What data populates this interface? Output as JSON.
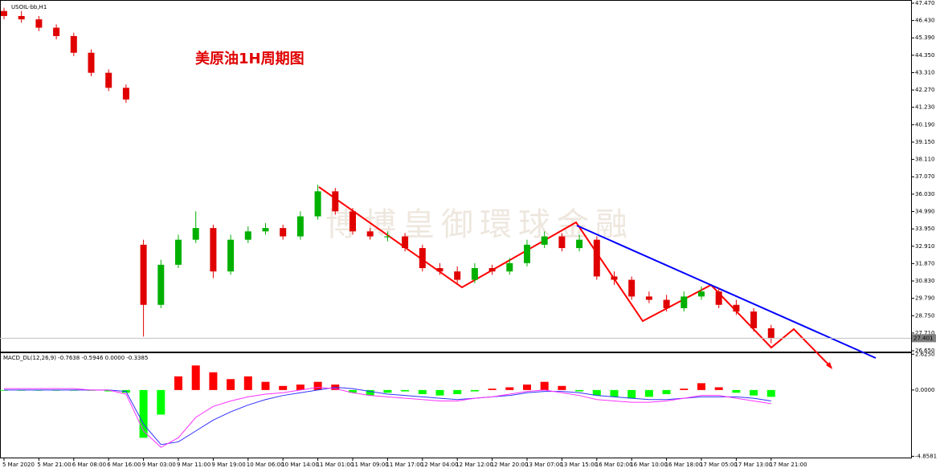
{
  "title": "USOIL-bb,H1",
  "annotation": "美原油1H周期图",
  "watermark": "博博皇御環球金融",
  "chart_data": [
    {
      "type": "candlestick",
      "categories": [
        "5 Mar 2020",
        null,
        "5 Mar 21:00",
        null,
        "6 Mar 08:00",
        null,
        "6 Mar 16:00",
        null,
        "9 Mar 03:00",
        null,
        "9 Mar 11:00",
        null,
        "9 Mar 19:00",
        null,
        "10 Mar 06:00",
        null,
        "10 Mar 14:00",
        null,
        "11 Mar 01:00",
        null,
        "11 Mar 09:00",
        null,
        "11 Mar 17:00",
        null,
        "12 Mar 04:00",
        null,
        "12 Mar 12:00",
        null,
        "12 Mar 20:00",
        null,
        "13 Mar 07:00",
        null,
        "13 Mar 15:00",
        null,
        "16 Mar 02:00",
        null,
        "16 Mar 10:00",
        null,
        "16 Mar 18:00",
        null,
        "17 Mar 05:00",
        null,
        "17 Mar 13:00",
        null,
        "17 Mar 21:00"
      ],
      "open": [
        47.0,
        46.7,
        46.5,
        46.0,
        45.5,
        44.5,
        43.3,
        42.4,
        33.0,
        29.4,
        31.8,
        33.3,
        34.0,
        31.4,
        33.3,
        33.8,
        34.0,
        33.5,
        34.7,
        36.2,
        35.0,
        33.8,
        33.5,
        33.5,
        32.8,
        31.6,
        31.4,
        30.9,
        31.6,
        31.4,
        31.9,
        33.0,
        33.5,
        32.8,
        33.3,
        31.1,
        30.9,
        29.9,
        29.7,
        29.2,
        29.9,
        30.2,
        29.4,
        29.0,
        28.0
      ],
      "high": [
        47.2,
        47.0,
        46.7,
        46.2,
        45.7,
        44.7,
        43.5,
        42.6,
        33.3,
        32.1,
        33.6,
        35.0,
        34.2,
        33.6,
        34.1,
        34.3,
        34.2,
        35.0,
        36.6,
        36.4,
        35.2,
        34.0,
        33.8,
        33.7,
        33.0,
        31.9,
        31.7,
        31.9,
        31.8,
        32.2,
        33.3,
        33.8,
        33.7,
        33.6,
        33.5,
        31.4,
        31.1,
        30.2,
        30.0,
        30.2,
        30.5,
        30.4,
        29.7,
        29.2,
        28.2
      ],
      "low": [
        46.5,
        46.3,
        45.8,
        45.3,
        44.3,
        43.1,
        42.2,
        41.5,
        27.5,
        29.2,
        31.6,
        33.1,
        31.0,
        31.2,
        33.1,
        33.6,
        33.3,
        33.3,
        34.5,
        34.8,
        33.6,
        33.3,
        33.2,
        32.6,
        31.4,
        31.2,
        30.7,
        30.7,
        31.2,
        31.2,
        31.7,
        32.8,
        32.6,
        32.6,
        30.9,
        30.6,
        29.7,
        29.5,
        29.0,
        29.0,
        29.7,
        29.2,
        28.8,
        27.8,
        27.1
      ],
      "close": [
        46.7,
        46.5,
        46.0,
        45.5,
        44.5,
        43.3,
        42.4,
        41.7,
        29.4,
        31.8,
        33.3,
        34.0,
        31.4,
        33.3,
        33.8,
        34.0,
        33.5,
        34.7,
        36.2,
        35.0,
        33.8,
        33.5,
        33.5,
        32.8,
        31.6,
        31.4,
        30.9,
        31.6,
        31.4,
        31.9,
        33.0,
        33.5,
        32.8,
        33.3,
        31.1,
        30.9,
        29.9,
        29.7,
        29.2,
        29.9,
        30.2,
        29.4,
        29.0,
        28.0,
        27.4
      ],
      "up_color": "#00b000",
      "down_color": "#e00000",
      "last_price": 27.401,
      "ylim": [
        26.6,
        47.66
      ],
      "yticks": [
        {
          "value": 47.47,
          "label": "47.470"
        },
        {
          "value": 46.43,
          "label": "46.430"
        },
        {
          "value": 45.39,
          "label": "45.390"
        },
        {
          "value": 44.35,
          "label": "44.350"
        },
        {
          "value": 43.31,
          "label": "43.310"
        },
        {
          "value": 42.27,
          "label": "42.270"
        },
        {
          "value": 41.23,
          "label": "41.230"
        },
        {
          "value": 40.19,
          "label": "40.190"
        },
        {
          "value": 39.15,
          "label": "39.150"
        },
        {
          "value": 38.11,
          "label": "38.110"
        },
        {
          "value": 37.07,
          "label": "37.070"
        },
        {
          "value": 36.03,
          "label": "36.030"
        },
        {
          "value": 34.99,
          "label": "34.990"
        },
        {
          "value": 33.95,
          "label": "33.950"
        },
        {
          "value": 32.91,
          "label": "32.910"
        },
        {
          "value": 31.87,
          "label": "31.870"
        },
        {
          "value": 30.83,
          "label": "30.830"
        },
        {
          "value": 29.79,
          "label": "29.790"
        },
        {
          "value": 28.75,
          "label": "28.750"
        },
        {
          "value": 27.71,
          "label": "27.710"
        },
        {
          "value": 26.65,
          "label": "26.650"
        }
      ]
    },
    {
      "type": "combo",
      "title": "MACD_DL(12,26,9) -0.7638 -0.5946 0.0000 -0.3385",
      "histogram": [
        -0.05,
        -0.05,
        -0.05,
        -0.05,
        -0.05,
        -0.05,
        -0.1,
        -0.2,
        -3.5,
        -1.8,
        1.0,
        1.8,
        1.3,
        0.8,
        1.0,
        0.6,
        0.3,
        0.4,
        0.6,
        0.4,
        -0.2,
        -0.4,
        -0.2,
        -0.1,
        -0.3,
        -0.4,
        -0.3,
        -0.1,
        0.1,
        0.2,
        0.4,
        0.6,
        0.3,
        -0.1,
        -0.4,
        -0.5,
        -0.6,
        -0.5,
        -0.3,
        0.1,
        0.5,
        0.2,
        -0.2,
        -0.4,
        -0.5
      ],
      "up_color": "#ff0000",
      "down_color": "#00ff00",
      "lines": [
        {
          "color": "#3030ff",
          "values": [
            0,
            0,
            0,
            0,
            0,
            0,
            0,
            -0.1,
            -2.5,
            -4.0,
            -3.8,
            -3.0,
            -2.2,
            -1.6,
            -1.1,
            -0.7,
            -0.4,
            -0.2,
            0.0,
            0.2,
            0.1,
            -0.1,
            -0.3,
            -0.4,
            -0.5,
            -0.6,
            -0.7,
            -0.6,
            -0.5,
            -0.4,
            -0.2,
            -0.1,
            -0.1,
            -0.2,
            -0.4,
            -0.5,
            -0.6,
            -0.7,
            -0.7,
            -0.6,
            -0.5,
            -0.5,
            -0.5,
            -0.6,
            -0.8
          ]
        },
        {
          "color": "#ff30ff",
          "values": [
            0.1,
            0.1,
            0.1,
            0.1,
            0.1,
            0,
            0,
            -0.3,
            -3.0,
            -4.2,
            -3.5,
            -2.0,
            -1.2,
            -0.8,
            -0.5,
            -0.3,
            -0.2,
            0.0,
            0.2,
            0.1,
            -0.2,
            -0.4,
            -0.5,
            -0.6,
            -0.7,
            -0.8,
            -0.8,
            -0.6,
            -0.5,
            -0.3,
            -0.1,
            0.0,
            -0.2,
            -0.4,
            -0.7,
            -0.8,
            -0.9,
            -0.9,
            -0.8,
            -0.6,
            -0.4,
            -0.4,
            -0.6,
            -0.8,
            -1.0
          ]
        }
      ],
      "ylim": [
        -4.95,
        2.7
      ],
      "yticks": [
        {
          "value": 2.625,
          "label": "2.6250"
        },
        {
          "value": 0,
          "label": "0.0000"
        },
        {
          "value": -4.8581,
          "label": "-4.8581"
        }
      ]
    }
  ]
}
